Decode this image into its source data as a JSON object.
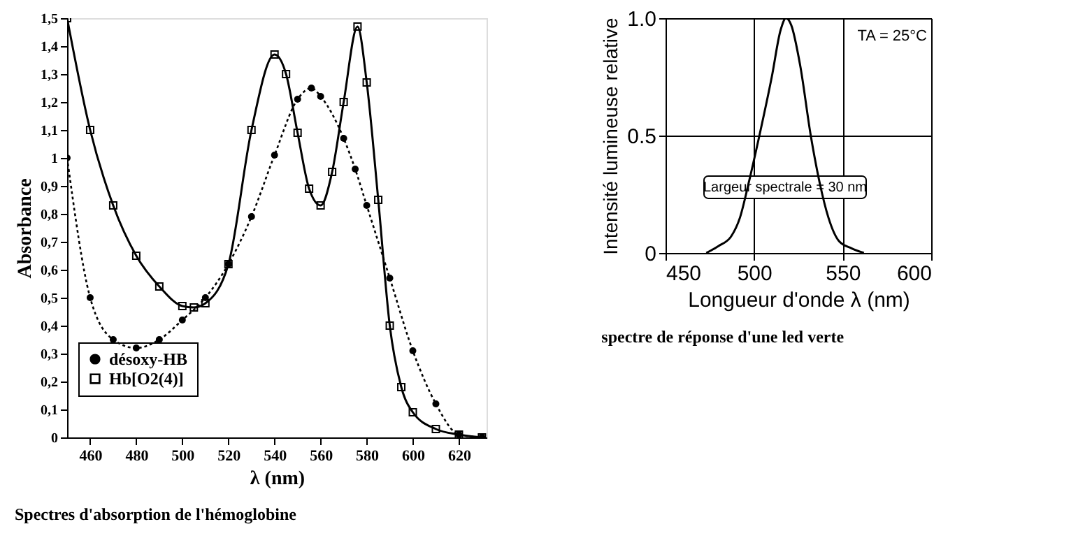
{
  "chart_data": [
    {
      "type": "line",
      "xlabel": "λ (nm)",
      "ylabel": "Absorbance",
      "xlim": [
        450,
        632
      ],
      "xticks": [
        460,
        480,
        500,
        520,
        540,
        560,
        580,
        600,
        620
      ],
      "ylim": [
        0,
        1.5
      ],
      "yticks": [
        0,
        {
          "value": 0.1,
          "label": "0,1"
        },
        {
          "value": 0.2,
          "label": "0,2"
        },
        {
          "value": 0.3,
          "label": "0,3"
        },
        {
          "value": 0.4,
          "label": "0,4"
        },
        {
          "value": 0.5,
          "label": "0,5"
        },
        {
          "value": 0.6,
          "label": "0,6"
        },
        {
          "value": 0.7,
          "label": "0,7"
        },
        {
          "value": 0.8,
          "label": "0,8"
        },
        {
          "value": 0.9,
          "label": "0,9"
        },
        1,
        {
          "value": 1.1,
          "label": "1,1"
        },
        {
          "value": 1.2,
          "label": "1,2"
        },
        {
          "value": 1.3,
          "label": "1,3"
        },
        {
          "value": 1.4,
          "label": "1,4"
        },
        {
          "value": 1.5,
          "label": "1,5"
        }
      ],
      "legend": "bottom left",
      "grid": false,
      "annotations": [
        "Spectres d'absorption de l'hémoglobine"
      ],
      "series": [
        {
          "name": "désoxy-HB",
          "color": "#000000",
          "marker": "circle",
          "line_style": "dotted",
          "x": [
            450,
            460,
            470,
            480,
            490,
            500,
            510,
            520,
            530,
            540,
            550,
            556,
            560,
            570,
            575,
            580,
            590,
            600,
            610,
            620,
            630
          ],
          "values": [
            1.0,
            0.5,
            0.35,
            0.32,
            0.35,
            0.42,
            0.5,
            0.62,
            0.79,
            1.01,
            1.21,
            1.25,
            1.22,
            1.07,
            0.96,
            0.83,
            0.57,
            0.31,
            0.12,
            0.01,
            0.0
          ]
        },
        {
          "name": "Hb[O2(4)]",
          "color": "#000000",
          "marker": "square",
          "line_style": "solid",
          "x": [
            450,
            460,
            470,
            480,
            490,
            500,
            505,
            510,
            520,
            530,
            540,
            545,
            550,
            555,
            560,
            565,
            570,
            576,
            580,
            585,
            590,
            595,
            600,
            610,
            620,
            630
          ],
          "values": [
            1.5,
            1.1,
            0.83,
            0.65,
            0.54,
            0.47,
            0.465,
            0.48,
            0.62,
            1.1,
            1.37,
            1.3,
            1.09,
            0.89,
            0.83,
            0.95,
            1.2,
            1.47,
            1.27,
            0.85,
            0.4,
            0.18,
            0.09,
            0.03,
            0.01,
            0.0
          ]
        }
      ]
    },
    {
      "type": "line",
      "xlabel": "Longueur d'onde λ (nm)",
      "ylabel": "Intensité lumineuse relative",
      "xlim": [
        450,
        600
      ],
      "xticks": [
        450,
        500,
        550,
        600
      ],
      "ylim": [
        0,
        1.0
      ],
      "yticks": [
        0,
        0.5,
        {
          "value": 1.0,
          "label": "1.0"
        }
      ],
      "grid": true,
      "marker": "none",
      "line_style": "solid",
      "annotations": [
        "TA = 25°C",
        "Largeur spectrale = 30 nm",
        "spectre de réponse d'une led verte"
      ],
      "series": [
        {
          "color": "#000000",
          "x": [
            473,
            480,
            487,
            492,
            497,
            503,
            510,
            515,
            518,
            521,
            526,
            532,
            537,
            542,
            548,
            555,
            562
          ],
          "values": [
            0.0,
            0.03,
            0.07,
            0.15,
            0.3,
            0.5,
            0.75,
            0.95,
            1.0,
            0.97,
            0.8,
            0.5,
            0.3,
            0.15,
            0.05,
            0.02,
            0.0
          ]
        }
      ]
    }
  ]
}
